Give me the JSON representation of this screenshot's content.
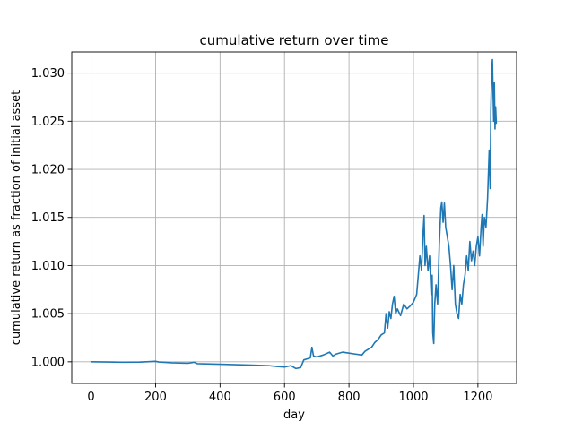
{
  "chart_data": {
    "type": "line",
    "title": "cumulative return over time",
    "xlabel": "day",
    "ylabel": "cumulative return as fraction of initial asset",
    "xlim": [
      -60,
      1320
    ],
    "ylim": [
      0.99775,
      1.0322
    ],
    "x_ticks": [
      0,
      200,
      400,
      600,
      800,
      1000,
      1200
    ],
    "x_tick_labels": [
      "0",
      "200",
      "400",
      "600",
      "800",
      "1000",
      "1200"
    ],
    "y_ticks": [
      1.0,
      1.005,
      1.01,
      1.015,
      1.02,
      1.025,
      1.03
    ],
    "y_tick_labels": [
      "1.000",
      "1.005",
      "1.010",
      "1.015",
      "1.020",
      "1.025",
      "1.030"
    ],
    "grid": true,
    "color": "#1f77b4",
    "series": [
      {
        "points": [
          [
            0,
            1.0
          ],
          [
            50,
            0.99998
          ],
          [
            100,
            0.99995
          ],
          [
            150,
            0.99997
          ],
          [
            200,
            1.00005
          ],
          [
            210,
            0.99998
          ],
          [
            250,
            0.9999
          ],
          [
            300,
            0.99985
          ],
          [
            320,
            0.99995
          ],
          [
            330,
            0.9998
          ],
          [
            400,
            0.99975
          ],
          [
            450,
            0.9997
          ],
          [
            500,
            0.99965
          ],
          [
            550,
            0.9996
          ],
          [
            580,
            0.9995
          ],
          [
            600,
            0.99945
          ],
          [
            620,
            0.9996
          ],
          [
            635,
            0.9993
          ],
          [
            650,
            0.9994
          ],
          [
            660,
            1.0002
          ],
          [
            670,
            1.0003
          ],
          [
            680,
            1.0004
          ],
          [
            685,
            1.0015
          ],
          [
            690,
            1.0006
          ],
          [
            700,
            1.0005
          ],
          [
            720,
            1.0007
          ],
          [
            740,
            1.001
          ],
          [
            750,
            1.0006
          ],
          [
            760,
            1.0008
          ],
          [
            780,
            1.001
          ],
          [
            800,
            1.0009
          ],
          [
            820,
            1.0008
          ],
          [
            840,
            1.0007
          ],
          [
            850,
            1.0011
          ],
          [
            860,
            1.0013
          ],
          [
            870,
            1.0015
          ],
          [
            880,
            1.002
          ],
          [
            890,
            1.0023
          ],
          [
            900,
            1.0028
          ],
          [
            910,
            1.003
          ],
          [
            915,
            1.005
          ],
          [
            920,
            1.0035
          ],
          [
            925,
            1.0052
          ],
          [
            930,
            1.0045
          ],
          [
            935,
            1.006
          ],
          [
            940,
            1.0068
          ],
          [
            945,
            1.005
          ],
          [
            950,
            1.0055
          ],
          [
            960,
            1.0048
          ],
          [
            970,
            1.006
          ],
          [
            980,
            1.0055
          ],
          [
            990,
            1.0058
          ],
          [
            1000,
            1.0062
          ],
          [
            1010,
            1.007
          ],
          [
            1015,
            1.009
          ],
          [
            1020,
            1.011
          ],
          [
            1025,
            1.0095
          ],
          [
            1030,
            1.0135
          ],
          [
            1033,
            1.0152
          ],
          [
            1036,
            1.01
          ],
          [
            1040,
            1.012
          ],
          [
            1045,
            1.0095
          ],
          [
            1050,
            1.011
          ],
          [
            1055,
            1.007
          ],
          [
            1058,
            1.009
          ],
          [
            1060,
            1.003
          ],
          [
            1063,
            1.0019
          ],
          [
            1066,
            1.006
          ],
          [
            1070,
            1.008
          ],
          [
            1075,
            1.006
          ],
          [
            1080,
            1.012
          ],
          [
            1085,
            1.016
          ],
          [
            1088,
            1.0166
          ],
          [
            1092,
            1.0145
          ],
          [
            1096,
            1.0165
          ],
          [
            1100,
            1.014
          ],
          [
            1105,
            1.013
          ],
          [
            1110,
            1.012
          ],
          [
            1115,
            1.01
          ],
          [
            1120,
            1.0075
          ],
          [
            1125,
            1.01
          ],
          [
            1130,
            1.006
          ],
          [
            1135,
            1.005
          ],
          [
            1140,
            1.0045
          ],
          [
            1145,
            1.007
          ],
          [
            1150,
            1.006
          ],
          [
            1155,
            1.008
          ],
          [
            1160,
            1.009
          ],
          [
            1165,
            1.011
          ],
          [
            1170,
            1.0095
          ],
          [
            1175,
            1.0125
          ],
          [
            1180,
            1.0105
          ],
          [
            1185,
            1.0115
          ],
          [
            1190,
            1.01
          ],
          [
            1195,
            1.012
          ],
          [
            1200,
            1.013
          ],
          [
            1205,
            1.011
          ],
          [
            1210,
            1.014
          ],
          [
            1213,
            1.0153
          ],
          [
            1216,
            1.012
          ],
          [
            1220,
            1.015
          ],
          [
            1225,
            1.014
          ],
          [
            1230,
            1.017
          ],
          [
            1235,
            1.022
          ],
          [
            1238,
            1.018
          ],
          [
            1240,
            1.026
          ],
          [
            1243,
            1.0305
          ],
          [
            1245,
            1.0314
          ],
          [
            1247,
            1.028
          ],
          [
            1249,
            1.025
          ],
          [
            1251,
            1.029
          ],
          [
            1253,
            1.0242
          ],
          [
            1255,
            1.0265
          ],
          [
            1257,
            1.0248
          ]
        ]
      }
    ]
  }
}
